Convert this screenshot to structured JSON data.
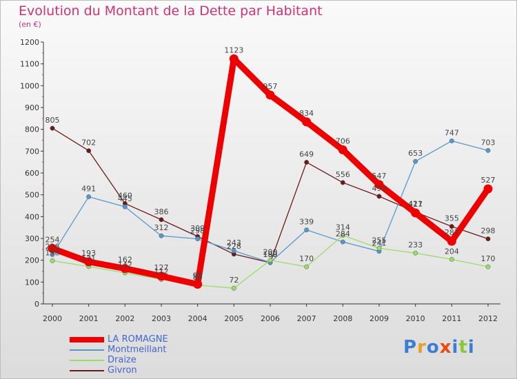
{
  "header": {
    "title": "Evolution du Montant de la Dette par Habitant",
    "subtitle": "(en €)"
  },
  "logo": {
    "text": "Proxiti",
    "colors": [
      "#3a7fd5",
      "#e8a020",
      "#3a7fd5",
      "#e84a10",
      "#3a7fd5",
      "#8cc63f",
      "#3a7fd5"
    ]
  },
  "colors": {
    "title": "#cc3377",
    "axis": "#333333",
    "label": "#4466cc"
  },
  "chart_data": {
    "type": "line",
    "title": "Evolution du Montant de la Dette par Habitant",
    "ylabel": "(en €)",
    "xlabel": "",
    "ylim": [
      0,
      1200
    ],
    "yticks": [
      0,
      100,
      200,
      300,
      400,
      500,
      600,
      700,
      800,
      900,
      1000,
      1100,
      1200
    ],
    "categories": [
      "2000",
      "2001",
      "2002",
      "2003",
      "2004",
      "2005",
      "2006",
      "2007",
      "2008",
      "2009",
      "2010",
      "2011",
      "2012"
    ],
    "grid": false,
    "legend": "bottom-left",
    "series": [
      {
        "name": "Givron",
        "color": "#6b1a1a",
        "values": [
          805,
          702,
          460,
          386,
          309,
          228,
          189,
          649,
          556,
          493,
          421,
          355,
          298
        ]
      },
      {
        "name": "Montmeillant",
        "color": "#5599cc",
        "values": [
          226,
          491,
          445,
          312,
          298,
          243,
          190,
          339,
          284,
          241,
          653,
          747,
          703
        ]
      },
      {
        "name": "Draize",
        "color": "#99dd66",
        "values": [
          198,
          171,
          142,
          112,
          86,
          72,
          200,
          170,
          314,
          255,
          233,
          204,
          170
        ]
      },
      {
        "name": "LA ROMAGNE",
        "color": "#ee0000",
        "values": [
          254,
          193,
          162,
          127,
          90,
          1123,
          957,
          834,
          706,
          547,
          417,
          287,
          527
        ]
      }
    ]
  }
}
